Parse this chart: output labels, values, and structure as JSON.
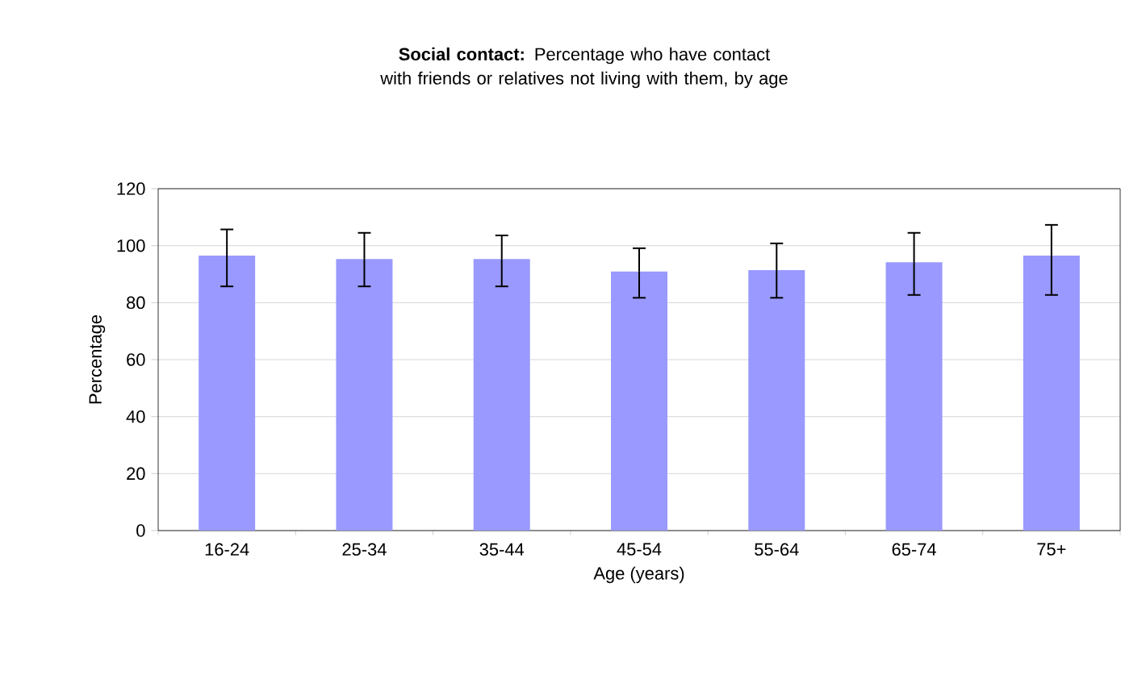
{
  "chart_data": {
    "type": "bar",
    "title": "**Social contact:** Percentage who have contact with friends or relatives not living with them, by age",
    "xlabel": "Age (years)",
    "ylabel": "Percentage",
    "categories": [
      "16-24",
      "25-34",
      "35-44",
      "45-54",
      "55-64",
      "65-74",
      "75+"
    ],
    "values": [
      96.5,
      95.3,
      95.3,
      90.9,
      91.4,
      94.2,
      96.5
    ],
    "errors": [
      [
        85.7,
        105.7
      ],
      [
        85.7,
        104.5
      ],
      [
        85.7,
        103.6
      ],
      [
        81.7,
        99.1
      ],
      [
        81.7,
        100.8
      ],
      [
        82.7,
        104.5
      ],
      [
        82.7,
        107.3
      ]
    ],
    "color": "#9999ff",
    "ylim": [
      0,
      120
    ],
    "yticks": [
      0,
      20,
      40,
      60,
      80,
      100,
      120
    ],
    "grid": "y"
  }
}
